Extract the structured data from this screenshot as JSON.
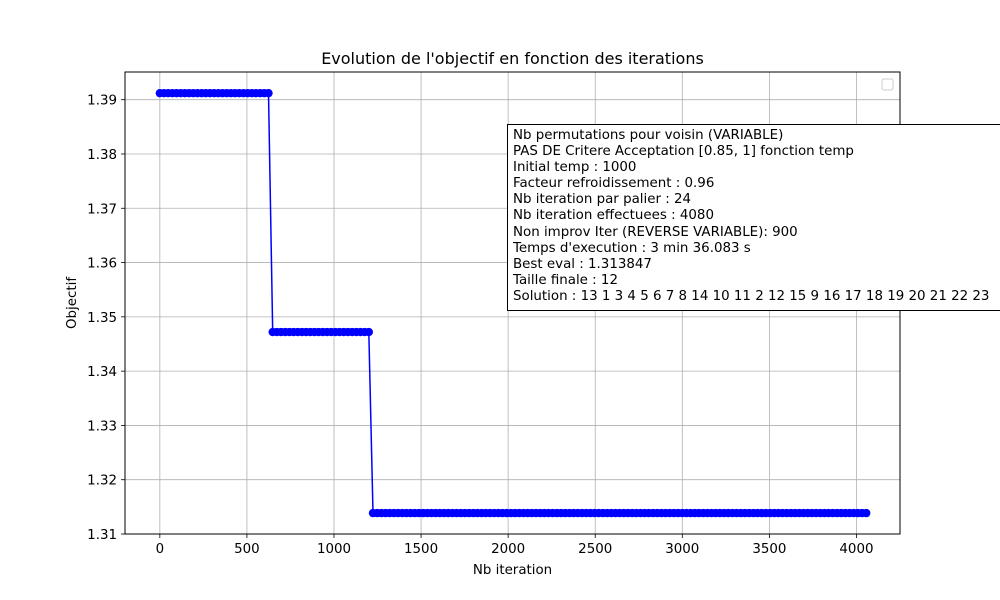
{
  "chart_data": {
    "type": "line",
    "title": "Evolution de l'objectif en fonction des iterations",
    "xlabel": "Nb iteration",
    "ylabel": "Objectif",
    "xlim": [
      -200,
      4250
    ],
    "ylim": [
      1.31,
      1.3951
    ],
    "xticks": [
      0,
      500,
      1000,
      1500,
      2000,
      2500,
      3000,
      3500,
      4000
    ],
    "xtick_labels": [
      "0",
      "500",
      "1000",
      "1500",
      "2000",
      "2500",
      "3000",
      "3500",
      "4000"
    ],
    "yticks": [
      1.31,
      1.32,
      1.33,
      1.34,
      1.35,
      1.36,
      1.37,
      1.38,
      1.39
    ],
    "ytick_labels": [
      "1.31",
      "1.32",
      "1.33",
      "1.34",
      "1.35",
      "1.36",
      "1.37",
      "1.38",
      "1.39"
    ],
    "grid": true,
    "legend": "top-right (empty)",
    "series": [
      {
        "color": "#0000ff",
        "marker": "circle",
        "point_step": 24,
        "segments": [
          {
            "x_start": 0,
            "x_end": 624,
            "y": 1.3912
          },
          {
            "x_start": 648,
            "x_end": 1200,
            "y": 1.3472
          },
          {
            "x_start": 1224,
            "x_end": 4056,
            "y": 1.313847
          }
        ]
      }
    ]
  },
  "info_box": {
    "lines": [
      "Nb permutations pour voisin (VARIABLE)",
      "PAS DE Critere Acceptation [0.85, 1] fonction temp",
      "Initial temp : 1000",
      "Facteur refroidissement : 0.96",
      "Nb iteration par palier : 24",
      "Nb iteration effectuees : 4080",
      "Non improv Iter (REVERSE VARIABLE): 900",
      "Temps d'execution : 3 min 36.083 s",
      "Best eval : 1.313847",
      "Taille finale : 12",
      "Solution : 13 1 3 4 5 6 7 8 14 10 11 2 12 15 9 16 17 18 19 20 21 22 23"
    ]
  }
}
